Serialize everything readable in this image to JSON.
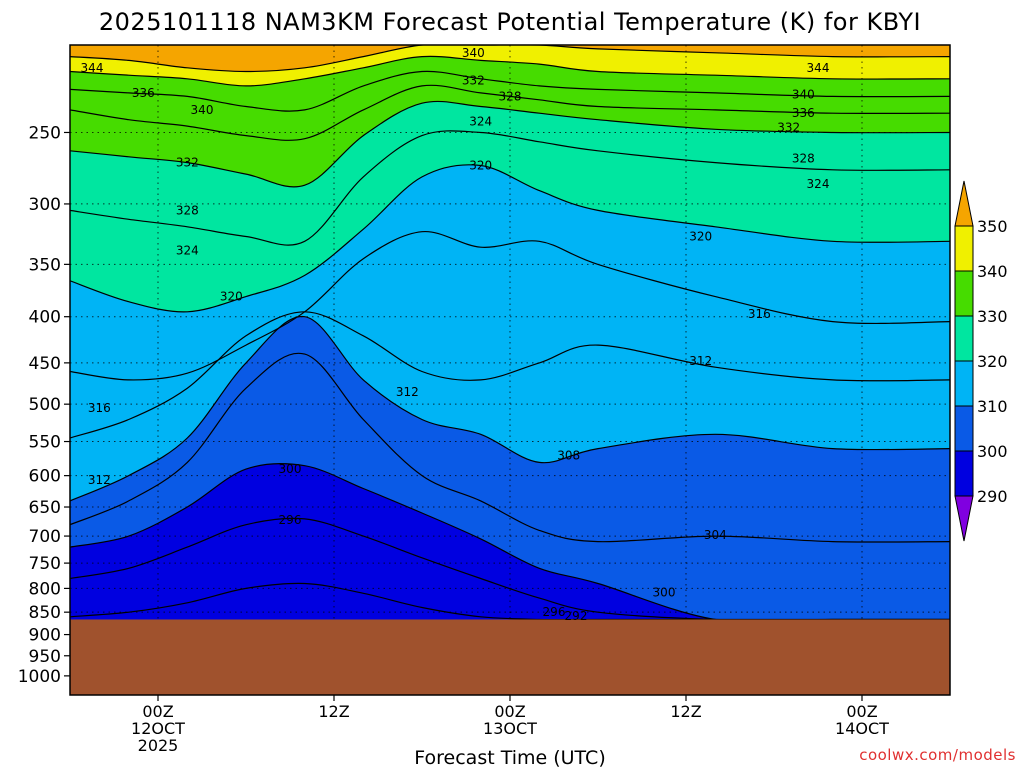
{
  "chart_data": {
    "type": "heatmap",
    "title": "2025101118 NAM3KM Forecast Potential Temperature (K) for KBYI",
    "xlabel": "Forecast Time (UTC)",
    "credit": "coolwx.com/models",
    "y_axis": {
      "quantity": "pressure (hPa)",
      "scale": "log",
      "inverted": true,
      "range": [
        200,
        1050
      ],
      "ticks": [
        250,
        300,
        350,
        400,
        450,
        500,
        550,
        600,
        650,
        700,
        750,
        800,
        850,
        900,
        950,
        1000
      ]
    },
    "x_axis": {
      "range_hours": [
        -6,
        54
      ],
      "ticks": [
        {
          "hour": 0,
          "lines": [
            "00Z",
            "12OCT",
            "2025"
          ]
        },
        {
          "hour": 12,
          "lines": [
            "12Z"
          ]
        },
        {
          "hour": 24,
          "lines": [
            "00Z",
            "13OCT"
          ]
        },
        {
          "hour": 36,
          "lines": [
            "12Z"
          ]
        },
        {
          "hour": 48,
          "lines": [
            "00Z",
            "14OCT"
          ]
        }
      ]
    },
    "grid": "dotted",
    "colorbar": {
      "position": "right",
      "levels": [
        290,
        300,
        310,
        320,
        330,
        340,
        350
      ],
      "colors": [
        "#0000e0",
        "#0a5ae6",
        "#00b4f5",
        "#00e6a0",
        "#46dc00",
        "#f0f000",
        "#f5a500"
      ],
      "under_color": "#8000e0",
      "over_color": "#f5a500"
    },
    "terrain": {
      "color": "#a0522d",
      "surface_pressure_hpa": 866
    },
    "contours": [
      {
        "level": 344,
        "pressure": [
          206,
          208,
          212,
          214,
          212,
          206,
          200,
          200,
          200,
          202,
          204,
          206,
          206
        ]
      },
      {
        "level": 340,
        "pressure": [
          214,
          216,
          218,
          222,
          218,
          212,
          206,
          208,
          210,
          214,
          216,
          218,
          218
        ]
      },
      {
        "level": 336,
        "pressure": [
          224,
          226,
          228,
          234,
          236,
          222,
          214,
          218,
          222,
          224,
          226,
          228,
          228
        ]
      },
      {
        "level": 332,
        "pressure": [
          236,
          242,
          246,
          252,
          254,
          236,
          222,
          226,
          230,
          234,
          236,
          238,
          238
        ]
      },
      {
        "level": 328,
        "pressure": [
          262,
          266,
          270,
          278,
          286,
          252,
          232,
          234,
          238,
          242,
          248,
          250,
          250
        ]
      },
      {
        "level": 324,
        "pressure": [
          305,
          312,
          318,
          326,
          330,
          280,
          252,
          250,
          256,
          262,
          270,
          275,
          275
        ]
      },
      {
        "level": 320,
        "pressure": [
          365,
          385,
          395,
          380,
          360,
          320,
          280,
          272,
          290,
          305,
          318,
          330,
          330
        ]
      },
      {
        "level": 316,
        "pressure": [
          460,
          470,
          462,
          430,
          395,
          345,
          322,
          335,
          330,
          350,
          380,
          405,
          405
        ]
      },
      {
        "level": 312,
        "pressure": [
          545,
          520,
          480,
          420,
          395,
          420,
          460,
          470,
          450,
          430,
          455,
          470,
          470
        ]
      },
      {
        "level": 308,
        "pressure": [
          640,
          600,
          545,
          450,
          400,
          470,
          520,
          540,
          580,
          560,
          540,
          560,
          560
        ]
      },
      {
        "level": 304,
        "pressure": [
          680,
          640,
          580,
          480,
          440,
          520,
          600,
          640,
          690,
          710,
          700,
          710,
          710
        ]
      },
      {
        "level": 300,
        "pressure": [
          720,
          700,
          650,
          590,
          585,
          620,
          660,
          705,
          760,
          790,
          866,
          866,
          866
        ]
      },
      {
        "level": 296,
        "pressure": [
          780,
          760,
          720,
          680,
          670,
          700,
          740,
          780,
          820,
          850,
          866,
          866,
          866
        ]
      },
      {
        "level": 292,
        "pressure": [
          860,
          850,
          830,
          800,
          790,
          810,
          840,
          860,
          866,
          866,
          866,
          866,
          866
        ]
      }
    ],
    "contour_hours": [
      -6,
      -2,
      2,
      6,
      10,
      14,
      18,
      22,
      26,
      30,
      38,
      46,
      54
    ],
    "contour_labels": [
      {
        "text": "344",
        "hour": -4.5,
        "p": 212
      },
      {
        "text": "336",
        "hour": -1,
        "p": 226
      },
      {
        "text": "340",
        "hour": 3,
        "p": 236
      },
      {
        "text": "332",
        "hour": 2,
        "p": 270
      },
      {
        "text": "328",
        "hour": 2,
        "p": 305
      },
      {
        "text": "324",
        "hour": 2,
        "p": 338
      },
      {
        "text": "320",
        "hour": 5,
        "p": 380
      },
      {
        "text": "316",
        "hour": -4,
        "p": 505
      },
      {
        "text": "312",
        "hour": -4,
        "p": 607
      },
      {
        "text": "300",
        "hour": 9,
        "p": 590
      },
      {
        "text": "296",
        "hour": 9,
        "p": 672
      },
      {
        "text": "340",
        "hour": 21.5,
        "p": 204
      },
      {
        "text": "332",
        "hour": 21.5,
        "p": 219
      },
      {
        "text": "328",
        "hour": 24,
        "p": 228
      },
      {
        "text": "324",
        "hour": 22,
        "p": 243
      },
      {
        "text": "320",
        "hour": 22,
        "p": 272
      },
      {
        "text": "312",
        "hour": 17,
        "p": 485
      },
      {
        "text": "308",
        "hour": 28,
        "p": 570
      },
      {
        "text": "304",
        "hour": 38,
        "p": 698
      },
      {
        "text": "300",
        "hour": 34.5,
        "p": 808
      },
      {
        "text": "296",
        "hour": 27,
        "p": 850
      },
      {
        "text": "292",
        "hour": 28.5,
        "p": 858
      },
      {
        "text": "344",
        "hour": 45,
        "p": 212
      },
      {
        "text": "340",
        "hour": 44,
        "p": 227
      },
      {
        "text": "336",
        "hour": 44,
        "p": 238
      },
      {
        "text": "332",
        "hour": 43,
        "p": 247
      },
      {
        "text": "328",
        "hour": 44,
        "p": 267
      },
      {
        "text": "324",
        "hour": 45,
        "p": 285
      },
      {
        "text": "320",
        "hour": 37,
        "p": 326
      },
      {
        "text": "316",
        "hour": 41,
        "p": 397
      },
      {
        "text": "312",
        "hour": 37,
        "p": 448
      }
    ]
  }
}
